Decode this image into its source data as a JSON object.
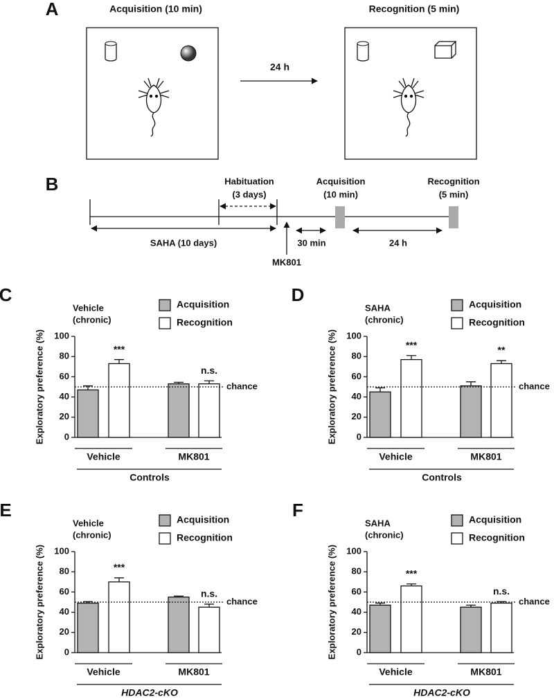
{
  "panel_a": {
    "label": "A",
    "left_title": "Acquisition (10 min)",
    "right_title": "Recognition (5 min)",
    "interval": "24 h"
  },
  "panel_b": {
    "label": "B",
    "habituation": [
      "Habituation",
      "(3 days)"
    ],
    "acquisition": [
      "Acquisition",
      "(10 min)"
    ],
    "recognition": [
      "Recognition",
      "(5 min)"
    ],
    "saha": "SAHA (10 days)",
    "mk801": "MK801",
    "delay1": "30 min",
    "delay2": "24 h"
  },
  "chart_data": [
    {
      "type": "bar",
      "panel": "C",
      "subtitle": [
        "Vehicle",
        "(chronic)"
      ],
      "ylabel": "Exploratory preference (%)",
      "categories": [
        "Vehicle",
        "MK801"
      ],
      "group_label": "Controls",
      "group_label_style": "normal",
      "series": [
        {
          "name": "Acquisition",
          "color": "#b3b3b3",
          "values": [
            47,
            53
          ],
          "errors": [
            4,
            1.5
          ]
        },
        {
          "name": "Recognition",
          "color": "#ffffff",
          "values": [
            73,
            53
          ],
          "errors": [
            4,
            3
          ]
        }
      ],
      "annotations": [
        "***",
        "n.s."
      ],
      "reference_line": {
        "value": 50,
        "label": "chance"
      },
      "ylim": [
        0,
        100
      ],
      "yticks": [
        0,
        20,
        40,
        60,
        80,
        100
      ]
    },
    {
      "type": "bar",
      "panel": "D",
      "subtitle": [
        "SAHA",
        "(chronic)"
      ],
      "ylabel": "Exploratory preference (%)",
      "categories": [
        "Vehicle",
        "MK801"
      ],
      "group_label": "Controls",
      "group_label_style": "normal",
      "series": [
        {
          "name": "Acquisition",
          "color": "#b3b3b3",
          "values": [
            45,
            51
          ],
          "errors": [
            4,
            4
          ]
        },
        {
          "name": "Recognition",
          "color": "#ffffff",
          "values": [
            77,
            73
          ],
          "errors": [
            4,
            3
          ]
        }
      ],
      "annotations": [
        "***",
        "**"
      ],
      "reference_line": {
        "value": 50,
        "label": "chance"
      },
      "ylim": [
        0,
        100
      ],
      "yticks": [
        0,
        20,
        40,
        60,
        80,
        100
      ]
    },
    {
      "type": "bar",
      "panel": "E",
      "subtitle": [
        "Vehicle",
        "(chronic)"
      ],
      "ylabel": "Exploratory preference (%)",
      "categories": [
        "Vehicle",
        "MK801"
      ],
      "group_label": "HDAC2-cKO",
      "group_label_style": "italic",
      "series": [
        {
          "name": "Acquisition",
          "color": "#b3b3b3",
          "values": [
            49,
            55
          ],
          "errors": [
            1.5,
            1
          ]
        },
        {
          "name": "Recognition",
          "color": "#ffffff",
          "values": [
            70,
            45
          ],
          "errors": [
            4,
            3
          ]
        }
      ],
      "annotations": [
        "***",
        "n.s."
      ],
      "reference_line": {
        "value": 50,
        "label": "chance"
      },
      "ylim": [
        0,
        100
      ],
      "yticks": [
        0,
        20,
        40,
        60,
        80,
        100
      ]
    },
    {
      "type": "bar",
      "panel": "F",
      "subtitle": [
        "SAHA",
        "(chronic)"
      ],
      "ylabel": "Exploratory preference (%)",
      "categories": [
        "Vehicle",
        "MK801"
      ],
      "group_label": "HDAC2-cKO",
      "group_label_style": "italic",
      "series": [
        {
          "name": "Acquisition",
          "color": "#b3b3b3",
          "values": [
            47,
            45
          ],
          "errors": [
            2,
            2
          ]
        },
        {
          "name": "Recognition",
          "color": "#ffffff",
          "values": [
            66,
            49
          ],
          "errors": [
            2,
            1.5
          ]
        }
      ],
      "annotations": [
        "***",
        "n.s."
      ],
      "reference_line": {
        "value": 50,
        "label": "chance"
      },
      "ylim": [
        0,
        100
      ],
      "yticks": [
        0,
        20,
        40,
        60,
        80,
        100
      ]
    }
  ]
}
